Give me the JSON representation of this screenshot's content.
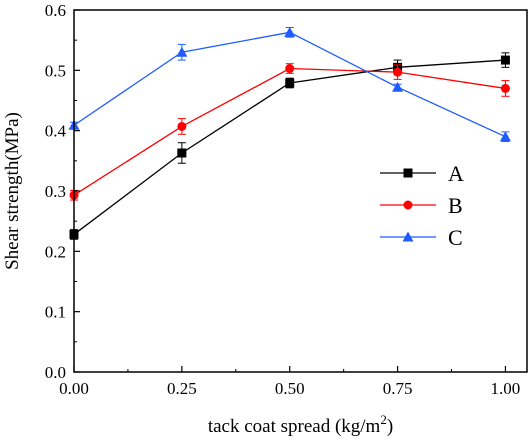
{
  "chart_data": {
    "type": "line",
    "xlabel": "tack coat spread (kg/m",
    "xlabel_sup": "2",
    "xlabel_close": ")",
    "ylabel": "Shear strength(MPa)",
    "x": [
      0.0,
      0.25,
      0.5,
      0.75,
      1.0
    ],
    "xlim": [
      0.0,
      1.05
    ],
    "ylim": [
      0.0,
      0.6
    ],
    "x_ticks": [
      "0.00",
      "0.25",
      "0.50",
      "0.75",
      "1.00"
    ],
    "y_ticks": [
      "0.0",
      "0.1",
      "0.2",
      "0.3",
      "0.4",
      "0.5",
      "0.6"
    ],
    "grid": false,
    "legend_position": "right",
    "series": [
      {
        "name": "A",
        "color": "#000000",
        "marker": "square",
        "values": [
          0.228,
          0.363,
          0.479,
          0.505,
          0.517
        ],
        "errors": [
          0.008,
          0.017,
          0.008,
          0.012,
          0.012
        ]
      },
      {
        "name": "B",
        "color": "#ff0000",
        "marker": "circle",
        "values": [
          0.293,
          0.407,
          0.503,
          0.497,
          0.47
        ],
        "errors": [
          0.008,
          0.013,
          0.008,
          0.012,
          0.013
        ]
      },
      {
        "name": "C",
        "color": "#1f5cff",
        "marker": "triangle",
        "values": [
          0.409,
          0.53,
          0.563,
          0.472,
          0.39
        ],
        "errors": [
          0.005,
          0.013,
          0.008,
          0.005,
          0.008
        ]
      }
    ]
  }
}
